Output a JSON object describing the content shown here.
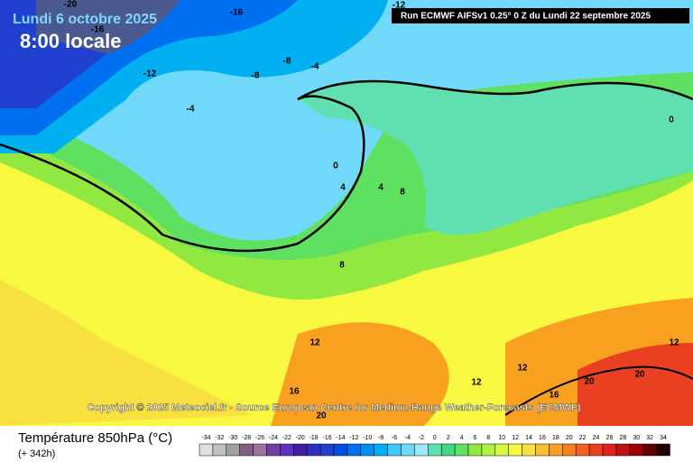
{
  "header": {
    "date": "Lundi 6 octobre 2025",
    "time": "8:00 locale",
    "run": "Run ECMWF AIFSv1 0.25° 0 Z du Lundi 22 septembre 2025"
  },
  "copyright": "Copyright © 2025 Meteociel.fr - Source European Centre for Medium-Range Weather-Forecasts (ECMWF)",
  "contour_labels": [
    "-20",
    "-16",
    "-16",
    "-12",
    "-8",
    "-8",
    "-4",
    "-4",
    "-12",
    "0",
    "4",
    "4",
    "8",
    "0",
    "8",
    "12",
    "12",
    "12",
    "12",
    "16",
    "16",
    "20",
    "20",
    "20"
  ],
  "legend": {
    "title": "Température 850hPa (°C)",
    "lead": "(+ 342h)",
    "ticks": [
      -34,
      -32,
      -30,
      -28,
      -26,
      -24,
      -22,
      -20,
      -18,
      -16,
      -14,
      -12,
      -10,
      -8,
      -6,
      -4,
      -2,
      0,
      2,
      4,
      6,
      8,
      10,
      12,
      14,
      16,
      18,
      20,
      22,
      24,
      26,
      28,
      30,
      32,
      34
    ],
    "colors": [
      "#e0e0e0",
      "#c0c0c0",
      "#a0a0a0",
      "#806080",
      "#a070a0",
      "#7040a0",
      "#6030c0",
      "#4020a0",
      "#3030c0",
      "#2040d0",
      "#0050e0",
      "#0070f0",
      "#0090f0",
      "#00b0f0",
      "#40c8f8",
      "#70d8f8",
      "#a0e8f8",
      "#60e0b0",
      "#40d880",
      "#60e060",
      "#90e840",
      "#b0f040",
      "#d8f840",
      "#f8f840",
      "#f8e040",
      "#f8c030",
      "#f8a020",
      "#f08020",
      "#f06020",
      "#e84020",
      "#e02020",
      "#c01010",
      "#a00000",
      "#600000",
      "#200000"
    ]
  }
}
